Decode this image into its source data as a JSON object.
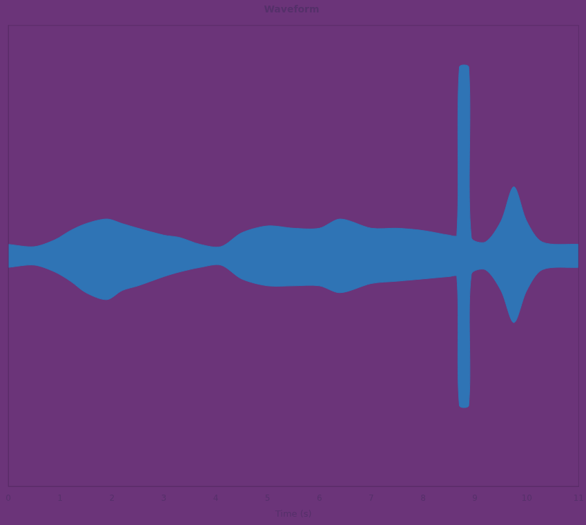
{
  "chart_data": {
    "type": "line",
    "title": "Waveform",
    "xlabel": "Time (s)",
    "x": [
      0,
      0.5,
      0.9,
      1.2,
      1.5,
      1.9,
      2.2,
      2.5,
      3.0,
      3.3,
      3.7,
      4.1,
      4.5,
      5.0,
      5.5,
      6.0,
      6.4,
      7.0,
      7.5,
      8.0,
      8.5,
      8.65,
      8.7,
      8.88,
      8.93,
      9.2,
      9.5,
      9.75,
      10.0,
      10.3,
      11
    ],
    "values": [
      0.05,
      0.04,
      0.07,
      0.11,
      0.14,
      0.16,
      0.14,
      0.12,
      0.09,
      0.08,
      0.05,
      0.04,
      0.1,
      0.13,
      0.12,
      0.12,
      0.16,
      0.12,
      0.12,
      0.11,
      0.09,
      0.09,
      0.82,
      0.82,
      0.08,
      0.06,
      0.15,
      0.3,
      0.15,
      0.06,
      0.05
    ],
    "lower": [
      -0.05,
      -0.04,
      -0.07,
      -0.11,
      -0.16,
      -0.19,
      -0.15,
      -0.13,
      -0.09,
      -0.07,
      -0.05,
      -0.04,
      -0.1,
      -0.13,
      -0.13,
      -0.13,
      -0.16,
      -0.12,
      -0.11,
      -0.1,
      -0.09,
      -0.09,
      -0.65,
      -0.65,
      -0.08,
      -0.06,
      -0.15,
      -0.29,
      -0.15,
      -0.06,
      -0.05
    ],
    "color": "#2f74b5",
    "xlim": [
      0,
      11
    ],
    "xticks": [
      0,
      1,
      2,
      3,
      4,
      5,
      6,
      7,
      8,
      9,
      10,
      11
    ],
    "ylim": [
      -1,
      1
    ],
    "grid": false,
    "tick_labels": "x"
  }
}
